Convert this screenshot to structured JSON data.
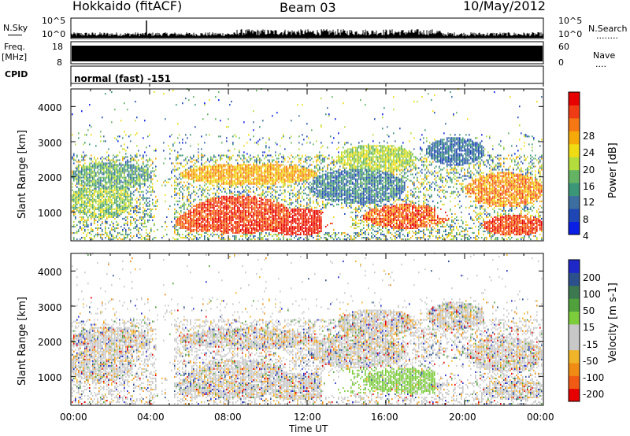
{
  "header": {
    "station": "Hokkaido (fitACF)",
    "beam": "Beam 03",
    "date": "10/May/2012"
  },
  "side_labels": {
    "nsky": "N.Sky",
    "freq": "Freq.",
    "freq_unit": "[MHz]",
    "cpid": "CPID",
    "nsearch": "N.Search",
    "nave": "Nave",
    "dots": "........",
    "dots_short": "...."
  },
  "noise_axis": {
    "left_top": "10^5",
    "left_bottom": "10^0",
    "right_top": "10^5",
    "right_bottom": "10^0"
  },
  "freq_axis": {
    "left_top": "18",
    "left_bottom": "8",
    "right_top": "60",
    "right_bottom": "0"
  },
  "cpid_text": "normal (fast) -151",
  "colors": {
    "power": [
      "#0a1ee6",
      "#1e46b4",
      "#3c6ea0",
      "#3c9678",
      "#64b464",
      "#b4dc3c",
      "#f0dc14",
      "#f5aa0a",
      "#f57814",
      "#f03c14",
      "#e60000"
    ],
    "velocity": [
      "#1e28c8",
      "#2c508c",
      "#3c7850",
      "#50a03c",
      "#7ccc3c",
      "#c8c8c8",
      "#c8c8c8",
      "#f0b428",
      "#f08c14",
      "#f05a14",
      "#e60000"
    ]
  },
  "chart_data": [
    {
      "type": "heatmap",
      "name": "power",
      "ylabel": "Slant Range [km]",
      "yticks": [
        "1000",
        "2000",
        "3000",
        "4000"
      ],
      "ylim": [
        180,
        4500
      ],
      "xticks": [
        "00:00",
        "04:00",
        "08:00",
        "12:00",
        "16:00",
        "20:00",
        "00:00"
      ],
      "colorbar_label": "Power [dB]",
      "colorbar_ticks": [
        "4",
        "8",
        "12",
        "16",
        "20",
        "24",
        "28"
      ],
      "clim": [
        0,
        32
      ]
    },
    {
      "type": "heatmap",
      "name": "velocity",
      "ylabel": "Slant Range [km]",
      "yticks": [
        "1000",
        "2000",
        "3000",
        "4000"
      ],
      "ylim": [
        180,
        4500
      ],
      "xticks": [
        "00:00",
        "04:00",
        "08:00",
        "12:00",
        "16:00",
        "20:00",
        "00:00"
      ],
      "xlabel": "Time UT",
      "colorbar_label": "Velocity [m s-1]",
      "colorbar_ticks": [
        "200",
        "100",
        "50",
        "15",
        "-15",
        "-50",
        "-100",
        "-200"
      ]
    }
  ]
}
